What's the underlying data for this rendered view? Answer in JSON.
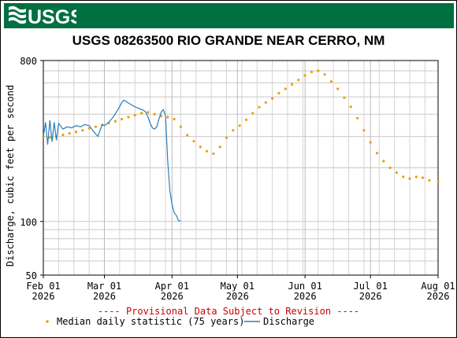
{
  "header": {
    "logo_text": "USGS",
    "brand_color": "#006f41"
  },
  "chart_data": {
    "type": "line",
    "title": "USGS 08263500 RIO GRANDE NEAR CERRO, NM",
    "ylabel": "Discharge, cubic feet per second",
    "y_scale": "log",
    "ylim": [
      50,
      800
    ],
    "y_ticks": [
      {
        "value": 800,
        "label": "800"
      },
      {
        "value": 100,
        "label": "100"
      },
      {
        "value": 50,
        "label": "50"
      }
    ],
    "xlim": [
      "2026-02-01",
      "2026-08-01"
    ],
    "x_ticks": [
      {
        "date": "2026-02-01",
        "label": "Feb 01",
        "year": "2026"
      },
      {
        "date": "2026-03-01",
        "label": "Mar 01",
        "year": "2026"
      },
      {
        "date": "2026-04-01",
        "label": "Apr 01",
        "year": "2026"
      },
      {
        "date": "2026-05-01",
        "label": "May 01",
        "year": "2026"
      },
      {
        "date": "2026-06-01",
        "label": "Jun 01",
        "year": "2026"
      },
      {
        "date": "2026-07-01",
        "label": "Jul 01",
        "year": "2026"
      },
      {
        "date": "2026-08-01",
        "label": "Aug 01",
        "year": "2026"
      }
    ],
    "grid": true,
    "provisional_note": "---- Provisional Data Subject to Revision ----",
    "series": [
      {
        "name": "Median daily statistic (75 years)",
        "color": "#e8a200",
        "marker": "dot",
        "points": [
          [
            "2026-02-01",
            300
          ],
          [
            "2026-02-04",
            296
          ],
          [
            "2026-02-07",
            300
          ],
          [
            "2026-02-10",
            306
          ],
          [
            "2026-02-13",
            312
          ],
          [
            "2026-02-16",
            318
          ],
          [
            "2026-02-19",
            325
          ],
          [
            "2026-02-22",
            333
          ],
          [
            "2026-02-25",
            340
          ],
          [
            "2026-02-28",
            348
          ],
          [
            "2026-03-03",
            356
          ],
          [
            "2026-03-06",
            365
          ],
          [
            "2026-03-09",
            375
          ],
          [
            "2026-03-12",
            385
          ],
          [
            "2026-03-15",
            395
          ],
          [
            "2026-03-18",
            405
          ],
          [
            "2026-03-21",
            410
          ],
          [
            "2026-03-24",
            400
          ],
          [
            "2026-03-27",
            390
          ],
          [
            "2026-03-30",
            385
          ],
          [
            "2026-04-02",
            375
          ],
          [
            "2026-04-05",
            340
          ],
          [
            "2026-04-08",
            305
          ],
          [
            "2026-04-11",
            282
          ],
          [
            "2026-04-14",
            262
          ],
          [
            "2026-04-17",
            248
          ],
          [
            "2026-04-20",
            240
          ],
          [
            "2026-04-23",
            262
          ],
          [
            "2026-04-26",
            295
          ],
          [
            "2026-04-29",
            325
          ],
          [
            "2026-05-02",
            345
          ],
          [
            "2026-05-05",
            372
          ],
          [
            "2026-05-08",
            405
          ],
          [
            "2026-05-11",
            438
          ],
          [
            "2026-05-14",
            465
          ],
          [
            "2026-05-17",
            490
          ],
          [
            "2026-05-20",
            525
          ],
          [
            "2026-05-23",
            555
          ],
          [
            "2026-05-26",
            588
          ],
          [
            "2026-05-29",
            622
          ],
          [
            "2026-06-01",
            660
          ],
          [
            "2026-06-04",
            690
          ],
          [
            "2026-06-07",
            700
          ],
          [
            "2026-06-10",
            668
          ],
          [
            "2026-06-13",
            610
          ],
          [
            "2026-06-16",
            555
          ],
          [
            "2026-06-19",
            495
          ],
          [
            "2026-06-22",
            440
          ],
          [
            "2026-06-25",
            380
          ],
          [
            "2026-06-28",
            325
          ],
          [
            "2026-07-01",
            278
          ],
          [
            "2026-07-04",
            242
          ],
          [
            "2026-07-07",
            218
          ],
          [
            "2026-07-10",
            200
          ],
          [
            "2026-07-13",
            188
          ],
          [
            "2026-07-16",
            178
          ],
          [
            "2026-07-19",
            174
          ],
          [
            "2026-07-22",
            178
          ],
          [
            "2026-07-25",
            176
          ],
          [
            "2026-07-28",
            170
          ],
          [
            "2026-08-01",
            168
          ]
        ]
      },
      {
        "name": "Discharge",
        "color": "#2a7fb8",
        "marker": "line",
        "points": [
          [
            "2026-02-01",
            300
          ],
          [
            "2026-02-02",
            360
          ],
          [
            "2026-02-03",
            270
          ],
          [
            "2026-02-04",
            370
          ],
          [
            "2026-02-05",
            280
          ],
          [
            "2026-02-06",
            360
          ],
          [
            "2026-02-07",
            285
          ],
          [
            "2026-02-08",
            355
          ],
          [
            "2026-02-10",
            330
          ],
          [
            "2026-02-12",
            340
          ],
          [
            "2026-02-14",
            335
          ],
          [
            "2026-02-16",
            345
          ],
          [
            "2026-02-18",
            340
          ],
          [
            "2026-02-20",
            350
          ],
          [
            "2026-02-22",
            345
          ],
          [
            "2026-02-24",
            320
          ],
          [
            "2026-02-26",
            300
          ],
          [
            "2026-02-28",
            350
          ],
          [
            "2026-03-01",
            345
          ],
          [
            "2026-03-03",
            360
          ],
          [
            "2026-03-05",
            385
          ],
          [
            "2026-03-07",
            420
          ],
          [
            "2026-03-09",
            465
          ],
          [
            "2026-03-10",
            480
          ],
          [
            "2026-03-11",
            470
          ],
          [
            "2026-03-13",
            455
          ],
          [
            "2026-03-15",
            440
          ],
          [
            "2026-03-17",
            430
          ],
          [
            "2026-03-19",
            420
          ],
          [
            "2026-03-20",
            410
          ],
          [
            "2026-03-21",
            385
          ],
          [
            "2026-03-22",
            355
          ],
          [
            "2026-03-23",
            335
          ],
          [
            "2026-03-24",
            330
          ],
          [
            "2026-03-25",
            340
          ],
          [
            "2026-03-26",
            375
          ],
          [
            "2026-03-27",
            410
          ],
          [
            "2026-03-28",
            425
          ],
          [
            "2026-03-29",
            395
          ],
          [
            "2026-03-30",
            220
          ],
          [
            "2026-03-31",
            150
          ],
          [
            "2026-04-01",
            125
          ],
          [
            "2026-04-02",
            112
          ],
          [
            "2026-04-03",
            108
          ],
          [
            "2026-04-04",
            101
          ],
          [
            "2026-04-05",
            101
          ]
        ]
      }
    ]
  }
}
